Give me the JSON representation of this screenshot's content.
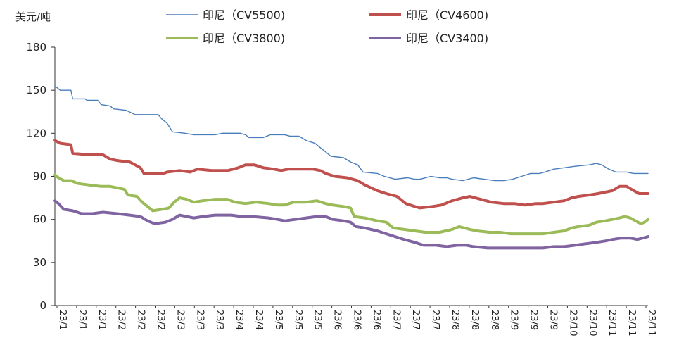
{
  "chart_data": {
    "type": "line",
    "ylabel": "美元/吨",
    "ylim": [
      0,
      180
    ],
    "yticks": [
      0,
      30,
      60,
      90,
      120,
      150,
      180
    ],
    "grid": false,
    "legend_position": "top",
    "xlim": [
      "2023-01-01",
      "2023-11-30"
    ],
    "x_tick_labels": [
      "23/1",
      "23/1",
      "23/1",
      "23/2",
      "23/2",
      "23/2",
      "23/3",
      "23/3",
      "23/3",
      "23/4",
      "23/4",
      "23/5",
      "23/5",
      "23/5",
      "23/6",
      "23/6",
      "23/6",
      "23/7",
      "23/7",
      "23/7",
      "23/8",
      "23/8",
      "23/8",
      "23/9",
      "23/9",
      "23/9",
      "23/10",
      "23/10",
      "23/11",
      "23/11",
      "23/11"
    ],
    "series": [
      {
        "name": "印尼（CV5500)",
        "color": "#4a7ebb",
        "line_weight": "thin",
        "points": [
          [
            "2023-01-01",
            153
          ],
          [
            "2023-01-04",
            150
          ],
          [
            "2023-01-10",
            150
          ],
          [
            "2023-01-11",
            144
          ],
          [
            "2023-01-18",
            144
          ],
          [
            "2023-01-19",
            143
          ],
          [
            "2023-01-25",
            143
          ],
          [
            "2023-01-27",
            140
          ],
          [
            "2023-02-01",
            139
          ],
          [
            "2023-02-03",
            137
          ],
          [
            "2023-02-10",
            136
          ],
          [
            "2023-02-15",
            133
          ],
          [
            "2023-02-25",
            133
          ],
          [
            "2023-02-28",
            133
          ],
          [
            "2023-03-02",
            130
          ],
          [
            "2023-03-05",
            127
          ],
          [
            "2023-03-08",
            121
          ],
          [
            "2023-03-15",
            120
          ],
          [
            "2023-03-20",
            119
          ],
          [
            "2023-04-01",
            119
          ],
          [
            "2023-04-05",
            120
          ],
          [
            "2023-04-15",
            120
          ],
          [
            "2023-04-18",
            119
          ],
          [
            "2023-04-20",
            117
          ],
          [
            "2023-04-28",
            117
          ],
          [
            "2023-05-02",
            119
          ],
          [
            "2023-05-10",
            119
          ],
          [
            "2023-05-13",
            118
          ],
          [
            "2023-05-18",
            118
          ],
          [
            "2023-05-22",
            115
          ],
          [
            "2023-05-27",
            113
          ],
          [
            "2023-06-01",
            108
          ],
          [
            "2023-06-05",
            104
          ],
          [
            "2023-06-12",
            103
          ],
          [
            "2023-06-16",
            100
          ],
          [
            "2023-06-20",
            98
          ],
          [
            "2023-06-23",
            93
          ],
          [
            "2023-07-01",
            92
          ],
          [
            "2023-07-05",
            90
          ],
          [
            "2023-07-11",
            88
          ],
          [
            "2023-07-18",
            89
          ],
          [
            "2023-07-22",
            88
          ],
          [
            "2023-07-25",
            88
          ],
          [
            "2023-07-31",
            90
          ],
          [
            "2023-08-05",
            89
          ],
          [
            "2023-08-09",
            89
          ],
          [
            "2023-08-12",
            88
          ],
          [
            "2023-08-18",
            87
          ],
          [
            "2023-08-24",
            89
          ],
          [
            "2023-08-30",
            88
          ],
          [
            "2023-09-05",
            87
          ],
          [
            "2023-09-10",
            87
          ],
          [
            "2023-09-15",
            88
          ],
          [
            "2023-09-20",
            90
          ],
          [
            "2023-09-25",
            92
          ],
          [
            "2023-09-30",
            92
          ],
          [
            "2023-10-03",
            93
          ],
          [
            "2023-10-08",
            95
          ],
          [
            "2023-10-14",
            96
          ],
          [
            "2023-10-20",
            97
          ],
          [
            "2023-10-28",
            98
          ],
          [
            "2023-11-01",
            99
          ],
          [
            "2023-11-04",
            98
          ],
          [
            "2023-11-08",
            95
          ],
          [
            "2023-11-12",
            93
          ],
          [
            "2023-11-18",
            93
          ],
          [
            "2023-11-22",
            92
          ],
          [
            "2023-11-30",
            92
          ]
        ]
      },
      {
        "name": "印尼（CV4600)",
        "color": "#c0504d",
        "line_weight": "thick",
        "points": [
          [
            "2023-01-01",
            115
          ],
          [
            "2023-01-04",
            113
          ],
          [
            "2023-01-10",
            112
          ],
          [
            "2023-01-11",
            106
          ],
          [
            "2023-01-20",
            105
          ],
          [
            "2023-01-28",
            105
          ],
          [
            "2023-02-01",
            102
          ],
          [
            "2023-02-05",
            101
          ],
          [
            "2023-02-12",
            100
          ],
          [
            "2023-02-18",
            96
          ],
          [
            "2023-02-20",
            92
          ],
          [
            "2023-02-27",
            92
          ],
          [
            "2023-03-03",
            92
          ],
          [
            "2023-03-05",
            93
          ],
          [
            "2023-03-12",
            94
          ],
          [
            "2023-03-18",
            93
          ],
          [
            "2023-03-22",
            95
          ],
          [
            "2023-03-30",
            94
          ],
          [
            "2023-04-08",
            94
          ],
          [
            "2023-04-14",
            96
          ],
          [
            "2023-04-18",
            98
          ],
          [
            "2023-04-23",
            98
          ],
          [
            "2023-04-28",
            96
          ],
          [
            "2023-05-04",
            95
          ],
          [
            "2023-05-08",
            94
          ],
          [
            "2023-05-12",
            95
          ],
          [
            "2023-05-18",
            95
          ],
          [
            "2023-05-26",
            95
          ],
          [
            "2023-05-30",
            94
          ],
          [
            "2023-06-02",
            92
          ],
          [
            "2023-06-07",
            90
          ],
          [
            "2023-06-14",
            89
          ],
          [
            "2023-06-20",
            87
          ],
          [
            "2023-06-24",
            84
          ],
          [
            "2023-07-01",
            80
          ],
          [
            "2023-07-06",
            78
          ],
          [
            "2023-07-12",
            76
          ],
          [
            "2023-07-17",
            71
          ],
          [
            "2023-07-22",
            69
          ],
          [
            "2023-07-25",
            68
          ],
          [
            "2023-08-01",
            69
          ],
          [
            "2023-08-06",
            70
          ],
          [
            "2023-08-12",
            73
          ],
          [
            "2023-08-18",
            75
          ],
          [
            "2023-08-22",
            76
          ],
          [
            "2023-08-28",
            74
          ],
          [
            "2023-09-03",
            72
          ],
          [
            "2023-09-10",
            71
          ],
          [
            "2023-09-16",
            71
          ],
          [
            "2023-09-22",
            70
          ],
          [
            "2023-09-28",
            71
          ],
          [
            "2023-10-02",
            71
          ],
          [
            "2023-10-08",
            72
          ],
          [
            "2023-10-14",
            73
          ],
          [
            "2023-10-18",
            75
          ],
          [
            "2023-10-22",
            76
          ],
          [
            "2023-10-28",
            77
          ],
          [
            "2023-11-02",
            78
          ],
          [
            "2023-11-06",
            79
          ],
          [
            "2023-11-10",
            80
          ],
          [
            "2023-11-14",
            83
          ],
          [
            "2023-11-18",
            83
          ],
          [
            "2023-11-22",
            80
          ],
          [
            "2023-11-25",
            78
          ],
          [
            "2023-11-30",
            78
          ]
        ]
      },
      {
        "name": "印尼（CV3800)",
        "color": "#9bbb59",
        "line_weight": "thick",
        "points": [
          [
            "2023-01-01",
            91
          ],
          [
            "2023-01-03",
            89
          ],
          [
            "2023-01-06",
            87
          ],
          [
            "2023-01-10",
            87
          ],
          [
            "2023-01-14",
            85
          ],
          [
            "2023-01-20",
            84
          ],
          [
            "2023-01-27",
            83
          ],
          [
            "2023-02-01",
            83
          ],
          [
            "2023-02-05",
            82
          ],
          [
            "2023-02-09",
            81
          ],
          [
            "2023-02-11",
            77
          ],
          [
            "2023-02-16",
            76
          ],
          [
            "2023-02-19",
            72
          ],
          [
            "2023-02-22",
            69
          ],
          [
            "2023-02-25",
            66
          ],
          [
            "2023-03-02",
            67
          ],
          [
            "2023-03-06",
            68
          ],
          [
            "2023-03-09",
            72
          ],
          [
            "2023-03-12",
            75
          ],
          [
            "2023-03-16",
            74
          ],
          [
            "2023-03-20",
            72
          ],
          [
            "2023-03-25",
            73
          ],
          [
            "2023-04-01",
            74
          ],
          [
            "2023-04-08",
            74
          ],
          [
            "2023-04-12",
            72
          ],
          [
            "2023-04-18",
            71
          ],
          [
            "2023-04-24",
            72
          ],
          [
            "2023-05-01",
            71
          ],
          [
            "2023-05-06",
            70
          ],
          [
            "2023-05-10",
            70
          ],
          [
            "2023-05-15",
            72
          ],
          [
            "2023-05-22",
            72
          ],
          [
            "2023-05-28",
            73
          ],
          [
            "2023-06-02",
            71
          ],
          [
            "2023-06-06",
            70
          ],
          [
            "2023-06-12",
            69
          ],
          [
            "2023-06-16",
            68
          ],
          [
            "2023-06-18",
            62
          ],
          [
            "2023-06-24",
            61
          ],
          [
            "2023-07-01",
            59
          ],
          [
            "2023-07-06",
            58
          ],
          [
            "2023-07-10",
            54
          ],
          [
            "2023-07-16",
            53
          ],
          [
            "2023-07-22",
            52
          ],
          [
            "2023-07-28",
            51
          ],
          [
            "2023-08-05",
            51
          ],
          [
            "2023-08-12",
            53
          ],
          [
            "2023-08-16",
            55
          ],
          [
            "2023-08-22",
            53
          ],
          [
            "2023-08-26",
            52
          ],
          [
            "2023-09-02",
            51
          ],
          [
            "2023-09-08",
            51
          ],
          [
            "2023-09-14",
            50
          ],
          [
            "2023-09-20",
            50
          ],
          [
            "2023-09-26",
            50
          ],
          [
            "2023-10-02",
            50
          ],
          [
            "2023-10-08",
            51
          ],
          [
            "2023-10-14",
            52
          ],
          [
            "2023-10-18",
            54
          ],
          [
            "2023-10-22",
            55
          ],
          [
            "2023-10-28",
            56
          ],
          [
            "2023-11-01",
            58
          ],
          [
            "2023-11-06",
            59
          ],
          [
            "2023-11-10",
            60
          ],
          [
            "2023-11-14",
            61
          ],
          [
            "2023-11-17",
            62
          ],
          [
            "2023-11-20",
            61
          ],
          [
            "2023-11-23",
            59
          ],
          [
            "2023-11-26",
            57
          ],
          [
            "2023-11-28",
            58
          ],
          [
            "2023-11-30",
            60
          ]
        ]
      },
      {
        "name": "印尼（CV3400)",
        "color": "#8064a2",
        "line_weight": "thick",
        "points": [
          [
            "2023-01-01",
            73
          ],
          [
            "2023-01-03",
            71
          ],
          [
            "2023-01-06",
            67
          ],
          [
            "2023-01-11",
            66
          ],
          [
            "2023-01-16",
            64
          ],
          [
            "2023-01-22",
            64
          ],
          [
            "2023-01-28",
            65
          ],
          [
            "2023-02-05",
            64
          ],
          [
            "2023-02-12",
            63
          ],
          [
            "2023-02-18",
            62
          ],
          [
            "2023-02-22",
            59
          ],
          [
            "2023-02-26",
            57
          ],
          [
            "2023-03-04",
            58
          ],
          [
            "2023-03-08",
            60
          ],
          [
            "2023-03-12",
            63
          ],
          [
            "2023-03-16",
            62
          ],
          [
            "2023-03-20",
            61
          ],
          [
            "2023-03-25",
            62
          ],
          [
            "2023-04-01",
            63
          ],
          [
            "2023-04-10",
            63
          ],
          [
            "2023-04-16",
            62
          ],
          [
            "2023-04-22",
            62
          ],
          [
            "2023-05-01",
            61
          ],
          [
            "2023-05-06",
            60
          ],
          [
            "2023-05-10",
            59
          ],
          [
            "2023-05-16",
            60
          ],
          [
            "2023-05-22",
            61
          ],
          [
            "2023-05-28",
            62
          ],
          [
            "2023-06-02",
            62
          ],
          [
            "2023-06-06",
            60
          ],
          [
            "2023-06-12",
            59
          ],
          [
            "2023-06-16",
            58
          ],
          [
            "2023-06-19",
            55
          ],
          [
            "2023-06-24",
            54
          ],
          [
            "2023-07-01",
            52
          ],
          [
            "2023-07-06",
            50
          ],
          [
            "2023-07-11",
            48
          ],
          [
            "2023-07-16",
            46
          ],
          [
            "2023-07-22",
            44
          ],
          [
            "2023-07-27",
            42
          ],
          [
            "2023-08-03",
            42
          ],
          [
            "2023-08-09",
            41
          ],
          [
            "2023-08-15",
            42
          ],
          [
            "2023-08-20",
            42
          ],
          [
            "2023-08-24",
            41
          ],
          [
            "2023-09-01",
            40
          ],
          [
            "2023-09-08",
            40
          ],
          [
            "2023-09-14",
            40
          ],
          [
            "2023-09-20",
            40
          ],
          [
            "2023-09-26",
            40
          ],
          [
            "2023-10-02",
            40
          ],
          [
            "2023-10-08",
            41
          ],
          [
            "2023-10-14",
            41
          ],
          [
            "2023-10-20",
            42
          ],
          [
            "2023-10-26",
            43
          ],
          [
            "2023-11-01",
            44
          ],
          [
            "2023-11-06",
            45
          ],
          [
            "2023-11-10",
            46
          ],
          [
            "2023-11-15",
            47
          ],
          [
            "2023-11-20",
            47
          ],
          [
            "2023-11-24",
            46
          ],
          [
            "2023-11-27",
            47
          ],
          [
            "2023-11-30",
            48
          ]
        ]
      }
    ]
  }
}
